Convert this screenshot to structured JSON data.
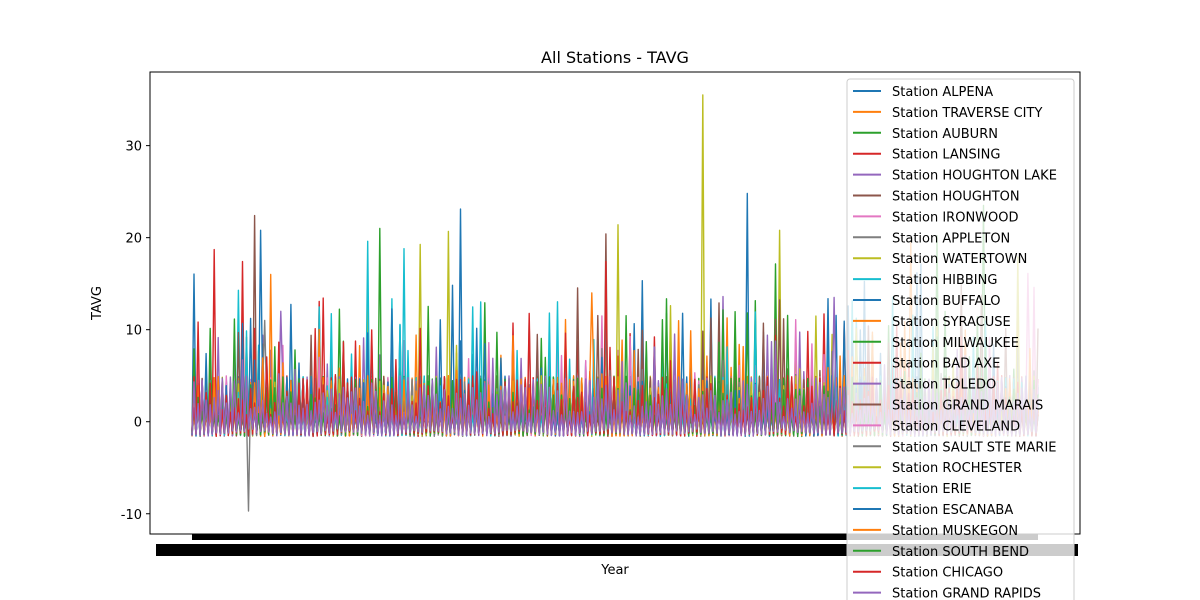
{
  "chart_data": {
    "type": "line",
    "title": "All Stations - TAVG",
    "xlabel": "Year",
    "ylabel": "TAVG",
    "ylim": [
      -12.2,
      38.0
    ],
    "y_ticks": [
      -10,
      0,
      10,
      20,
      30
    ],
    "grid": false,
    "legend_position": "top-right",
    "series": [
      {
        "name": "Station ALPENA",
        "color": "#1f77b4",
        "peak": 24.8
      },
      {
        "name": "Station TRAVERSE CITY",
        "color": "#ff7f0e",
        "peak": 19.5
      },
      {
        "name": "Station AUBURN",
        "color": "#2ca02c",
        "peak": 23.5
      },
      {
        "name": "Station LANSING",
        "color": "#d62728",
        "peak": 18.7
      },
      {
        "name": "Station HOUGHTON LAKE",
        "color": "#9467bd",
        "peak": 13.6
      },
      {
        "name": "Station HOUGHTON",
        "color": "#8c564b",
        "peak": 22.4
      },
      {
        "name": "Station IRONWOOD",
        "color": "#e377c2",
        "peak": 16.1
      },
      {
        "name": "Station APPLETON",
        "color": "#7f7f7f",
        "peak": 11.0,
        "min": -9.7
      },
      {
        "name": "Station WATERTOWN",
        "color": "#bcbd22",
        "peak": 35.5
      },
      {
        "name": "Station HIBBING",
        "color": "#17becf",
        "peak": 19.6
      },
      {
        "name": "Station BUFFALO",
        "color": "#1f77b4",
        "peak": 23.1
      },
      {
        "name": "Station SYRACUSE",
        "color": "#ff7f0e",
        "peak": 16.0
      },
      {
        "name": "Station MILWAUKEE",
        "color": "#2ca02c",
        "peak": 20.2
      },
      {
        "name": "Station BAD AXE",
        "color": "#d62728",
        "peak": 17.4
      },
      {
        "name": "Station TOLEDO",
        "color": "#9467bd",
        "peak": 12.0
      },
      {
        "name": "Station GRAND MARAIS",
        "color": "#8c564b",
        "peak": 20.4
      },
      {
        "name": "Station CLEVELAND",
        "color": "#e377c2",
        "peak": 14.6
      },
      {
        "name": "Station SAULT STE MARIE",
        "color": "#7f7f7f",
        "peak": 10.8
      },
      {
        "name": "Station ROCHESTER",
        "color": "#bcbd22",
        "peak": 21.4
      },
      {
        "name": "Station ERIE",
        "color": "#17becf",
        "peak": 18.8
      },
      {
        "name": "Station ESCANABA",
        "color": "#1f77b4",
        "peak": 20.8
      },
      {
        "name": "Station MUSKEGON",
        "color": "#ff7f0e",
        "peak": 14.0
      },
      {
        "name": "Station SOUTH BEND",
        "color": "#2ca02c",
        "peak": 21.0
      },
      {
        "name": "Station CHICAGO",
        "color": "#d62728",
        "peak": 17.4
      },
      {
        "name": "Station GRAND RAPIDS",
        "color": "#9467bd",
        "peak": 13.5
      }
    ]
  }
}
